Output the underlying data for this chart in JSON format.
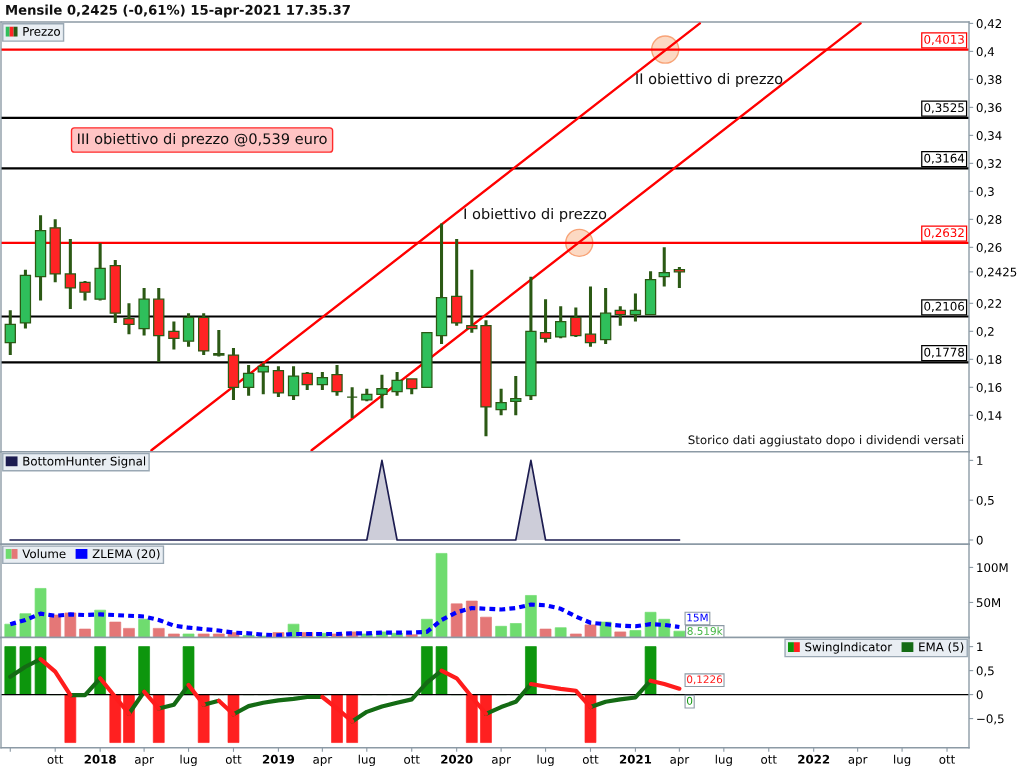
{
  "chart_data": [
    {
      "type": "candlestick",
      "title": "Mensile 0,2425 (-0,61%) 15-apr-2021 17.35.37",
      "x": [
        "2017-07",
        "2017-08",
        "2017-09",
        "2017-10",
        "2017-11",
        "2017-12",
        "2018-01",
        "2018-02",
        "2018-03",
        "2018-04",
        "2018-05",
        "2018-06",
        "2018-07",
        "2018-08",
        "2018-09",
        "2018-10",
        "2018-11",
        "2018-12",
        "2019-01",
        "2019-02",
        "2019-03",
        "2019-04",
        "2019-05",
        "2019-06",
        "2019-07",
        "2019-08",
        "2019-09",
        "2019-10",
        "2019-11",
        "2019-12",
        "2020-01",
        "2020-02",
        "2020-03",
        "2020-04",
        "2020-05",
        "2020-06",
        "2020-07",
        "2020-08",
        "2020-09",
        "2020-10",
        "2020-11",
        "2020-12",
        "2021-01",
        "2021-02",
        "2021-03",
        "2021-04"
      ],
      "series": [
        {
          "type": "candlestick",
          "name": "Prezzo",
          "color": "#2b5914",
          "ohlc": [
            [
              0.192,
              0.215,
              0.183,
              0.205
            ],
            [
              0.206,
              0.244,
              0.202,
              0.24
            ],
            [
              0.239,
              0.283,
              0.222,
              0.272
            ],
            [
              0.274,
              0.28,
              0.235,
              0.241
            ],
            [
              0.241,
              0.266,
              0.216,
              0.231
            ],
            [
              0.235,
              0.236,
              0.222,
              0.228
            ],
            [
              0.223,
              0.263,
              0.222,
              0.245
            ],
            [
              0.247,
              0.251,
              0.206,
              0.213
            ],
            [
              0.209,
              0.22,
              0.198,
              0.205
            ],
            [
              0.202,
              0.231,
              0.197,
              0.223
            ],
            [
              0.223,
              0.231,
              0.178,
              0.197
            ],
            [
              0.2,
              0.207,
              0.187,
              0.195
            ],
            [
              0.193,
              0.213,
              0.189,
              0.21
            ],
            [
              0.21,
              0.213,
              0.183,
              0.186
            ],
            [
              0.183,
              0.201,
              0.182,
              0.184
            ],
            [
              0.183,
              0.188,
              0.151,
              0.16
            ],
            [
              0.16,
              0.176,
              0.154,
              0.17
            ],
            [
              0.171,
              0.177,
              0.155,
              0.175
            ],
            [
              0.172,
              0.175,
              0.153,
              0.156
            ],
            [
              0.154,
              0.175,
              0.151,
              0.168
            ],
            [
              0.17,
              0.171,
              0.158,
              0.162
            ],
            [
              0.162,
              0.171,
              0.158,
              0.167
            ],
            [
              0.169,
              0.176,
              0.154,
              0.157
            ],
            [
              0.153,
              0.16,
              0.138,
              0.153
            ],
            [
              0.151,
              0.159,
              0.15,
              0.155
            ],
            [
              0.155,
              0.169,
              0.145,
              0.159
            ],
            [
              0.157,
              0.171,
              0.154,
              0.165
            ],
            [
              0.166,
              0.166,
              0.155,
              0.159
            ],
            [
              0.16,
              0.199,
              0.16,
              0.199
            ],
            [
              0.197,
              0.277,
              0.191,
              0.224
            ],
            [
              0.225,
              0.266,
              0.204,
              0.206
            ],
            [
              0.204,
              0.244,
              0.199,
              0.202
            ],
            [
              0.204,
              0.208,
              0.125,
              0.146
            ],
            [
              0.144,
              0.159,
              0.14,
              0.149
            ],
            [
              0.15,
              0.168,
              0.14,
              0.152
            ],
            [
              0.154,
              0.239,
              0.151,
              0.2
            ],
            [
              0.199,
              0.223,
              0.192,
              0.195
            ],
            [
              0.196,
              0.218,
              0.195,
              0.207
            ],
            [
              0.21,
              0.217,
              0.196,
              0.197
            ],
            [
              0.198,
              0.232,
              0.189,
              0.192
            ],
            [
              0.194,
              0.231,
              0.191,
              0.213
            ],
            [
              0.215,
              0.218,
              0.204,
              0.212
            ],
            [
              0.212,
              0.227,
              0.207,
              0.215
            ],
            [
              0.212,
              0.243,
              0.212,
              0.237
            ],
            [
              0.239,
              0.26,
              0.232,
              0.242
            ],
            [
              0.244,
              0.246,
              0.231,
              0.2425
            ]
          ],
          "colors": [
            "#2fbf5b",
            "#2fbf5b",
            "#2fbf5b",
            "#ff2424",
            "#ff2424",
            "#ff2424",
            "#2fbf5b",
            "#ff2424",
            "#ff2424",
            "#2fbf5b",
            "#ff2424",
            "#ff2424",
            "#2fbf5b",
            "#ff2424",
            "#2b5914",
            "#ff2424",
            "#2fbf5b",
            "#2fbf5b",
            "#ff2424",
            "#2fbf5b",
            "#ff2424",
            "#2fbf5b",
            "#ff2424",
            "#2b5914",
            "#2fbf5b",
            "#2fbf5b",
            "#2fbf5b",
            "#ff2424",
            "#2fbf5b",
            "#2fbf5b",
            "#ff2424",
            "#ff2424",
            "#ff2424",
            "#2fbf5b",
            "#2fbf5b",
            "#2fbf5b",
            "#ff2424",
            "#2fbf5b",
            "#ff2424",
            "#ff2424",
            "#2fbf5b",
            "#ff2424",
            "#2fbf5b",
            "#2fbf5b",
            "#2fbf5b",
            "#ff2424"
          ]
        },
        {
          "type": "line",
          "color": "#ff0000",
          "x": [
            "2018-04-16",
            "2021-05-13"
          ],
          "values": [
            0.115,
            0.42
          ]
        },
        {
          "type": "line",
          "color": "#ff0000",
          "x": [
            "2019-03-10",
            "2022-04-07"
          ],
          "values": [
            0.115,
            0.42
          ]
        },
        {
          "type": "scatter",
          "color": "#fcd2b8",
          "marker": "circle",
          "x": [
            "2020-09-08",
            "2021-03-03"
          ],
          "values": [
            0.2632,
            0.4013
          ]
        }
      ],
      "ref_lines": [
        {
          "axis": "y",
          "value": 0.4013,
          "label": "0,4013",
          "color": "#ff0000"
        },
        {
          "axis": "y",
          "value": 0.3525,
          "label": "0,3525",
          "color": "#000000"
        },
        {
          "axis": "y",
          "value": 0.3164,
          "label": "0,3164",
          "color": "#000000"
        },
        {
          "axis": "y",
          "value": 0.2632,
          "label": "0,2632",
          "color": "#ff0000"
        },
        {
          "axis": "y",
          "value": 0.2106,
          "label": "0,2106",
          "color": "#000000"
        },
        {
          "axis": "y",
          "value": 0.1778,
          "label": "0,1778",
          "color": "#000000"
        }
      ],
      "annotations": [
        "III obiettivo di prezzo @0,539 euro",
        "II obiettivo di prezzo",
        "I obiettivo di prezzo",
        "Storico dati aggiustato dopo i dividendi versati"
      ],
      "xlim": [
        "2017-06-12",
        "2022-11-15"
      ],
      "ylim": [
        0.114,
        0.421
      ],
      "yticks": [
        {
          "value": 0.14,
          "label": "0,14"
        },
        {
          "value": 0.16,
          "label": "0,16"
        },
        {
          "value": 0.18,
          "label": "0,18"
        },
        {
          "value": 0.2,
          "label": "0,2"
        },
        {
          "value": 0.22,
          "label": "0,22"
        },
        {
          "value": 0.2425,
          "label": "0,2425"
        },
        {
          "value": 0.26,
          "label": "0,26"
        },
        {
          "value": 0.28,
          "label": "0,28"
        },
        {
          "value": 0.3,
          "label": "0,3"
        },
        {
          "value": 0.32,
          "label": "0,32"
        },
        {
          "value": 0.34,
          "label": "0,34"
        },
        {
          "value": 0.36,
          "label": "0,36"
        },
        {
          "value": 0.38,
          "label": "0,38"
        },
        {
          "value": 0.4,
          "label": "0,4"
        },
        {
          "value": 0.42,
          "label": "0,42"
        }
      ],
      "tick_labels": "y",
      "legend": "top left"
    },
    {
      "type": "area",
      "x": [
        "2017-07",
        "2017-08",
        "2017-09",
        "2017-10",
        "2017-11",
        "2017-12",
        "2018-01",
        "2018-02",
        "2018-03",
        "2018-04",
        "2018-05",
        "2018-06",
        "2018-07",
        "2018-08",
        "2018-09",
        "2018-10",
        "2018-11",
        "2018-12",
        "2019-01",
        "2019-02",
        "2019-03",
        "2019-04",
        "2019-05",
        "2019-06",
        "2019-07",
        "2019-08",
        "2019-09",
        "2019-10",
        "2019-11",
        "2019-12",
        "2020-01",
        "2020-02",
        "2020-03",
        "2020-04",
        "2020-05",
        "2020-06",
        "2020-07",
        "2020-08",
        "2020-09",
        "2020-10",
        "2020-11",
        "2020-12",
        "2021-01",
        "2021-02",
        "2021-03",
        "2021-04"
      ],
      "series": [
        {
          "name": "BottomHunter Signal",
          "color": "#1c1c50",
          "values": [
            0,
            0,
            0,
            0,
            0,
            0,
            0,
            0,
            0,
            0,
            0,
            0,
            0,
            0,
            0,
            0,
            0,
            0,
            0,
            0,
            0,
            0,
            0,
            0,
            0,
            1,
            0,
            0,
            0,
            0,
            0,
            0,
            0,
            0,
            0,
            1,
            0,
            0,
            0,
            0,
            0,
            0,
            0,
            0,
            0,
            0
          ]
        }
      ],
      "xlim": [
        "2017-06-12",
        "2022-11-15"
      ],
      "ylim": [
        -0.054,
        1.109
      ],
      "yticks": [
        0,
        {
          "value": 0.5,
          "label": "0,5"
        },
        1
      ],
      "tick_labels": "y",
      "legend": "top left"
    },
    {
      "type": "bar",
      "x": [
        "2017-07",
        "2017-08",
        "2017-09",
        "2017-10",
        "2017-11",
        "2017-12",
        "2018-01",
        "2018-02",
        "2018-03",
        "2018-04",
        "2018-05",
        "2018-06",
        "2018-07",
        "2018-08",
        "2018-09",
        "2018-10",
        "2018-11",
        "2018-12",
        "2019-01",
        "2019-02",
        "2019-03",
        "2019-04",
        "2019-05",
        "2019-06",
        "2019-07",
        "2019-08",
        "2019-09",
        "2019-10",
        "2019-11",
        "2019-12",
        "2020-01",
        "2020-02",
        "2020-03",
        "2020-04",
        "2020-05",
        "2020-06",
        "2020-07",
        "2020-08",
        "2020-09",
        "2020-10",
        "2020-11",
        "2020-12",
        "2021-01",
        "2021-02",
        "2021-03",
        "2021-04"
      ],
      "series": [
        {
          "name": "Volume",
          "values": [
            19000000,
            34000000,
            70000000,
            32000000,
            35000000,
            12000000,
            39000000,
            22000000,
            13000000,
            26000000,
            13000000,
            5000000,
            5000000,
            5000000,
            5000000,
            7000000,
            3000000,
            2000000,
            7000000,
            19000000,
            7000000,
            6000000,
            5000000,
            8000000,
            5000000,
            8000000,
            6000000,
            4000000,
            26000000,
            120000000,
            48000000,
            52000000,
            29000000,
            16000000,
            20000000,
            60000000,
            12000000,
            14000000,
            5000000,
            18000000,
            22000000,
            8000000,
            10000000,
            36000000,
            26000000,
            9000000
          ],
          "colors": [
            "#6fdc6f",
            "#6fdc6f",
            "#6fdc6f",
            "#e47777",
            "#e47777",
            "#e47777",
            "#6fdc6f",
            "#e47777",
            "#e47777",
            "#6fdc6f",
            "#e47777",
            "#e47777",
            "#6fdc6f",
            "#e47777",
            "#e47777",
            "#e47777",
            "#6fdc6f",
            "#6fdc6f",
            "#e47777",
            "#6fdc6f",
            "#e47777",
            "#6fdc6f",
            "#e47777",
            "#e47777",
            "#6fdc6f",
            "#6fdc6f",
            "#6fdc6f",
            "#e47777",
            "#6fdc6f",
            "#6fdc6f",
            "#e47777",
            "#e47777",
            "#e47777",
            "#6fdc6f",
            "#6fdc6f",
            "#6fdc6f",
            "#e47777",
            "#6fdc6f",
            "#e47777",
            "#e47777",
            "#6fdc6f",
            "#e47777",
            "#6fdc6f",
            "#6fdc6f",
            "#6fdc6f",
            "#6fdc6f"
          ]
        },
        {
          "name": "ZLEMA (20)",
          "type": "line",
          "color": "#0000ff",
          "line_style": "dashed",
          "values": [
            19000000,
            25000000,
            34000000,
            31000000,
            33000000,
            32000000,
            33000000,
            32000000,
            31000000,
            30000000,
            25000000,
            17000000,
            14000000,
            12000000,
            10000000,
            7000000,
            6000000,
            4000000,
            3000000,
            5000000,
            5000000,
            5000000,
            5000000,
            6000000,
            6000000,
            7000000,
            7000000,
            7000000,
            8000000,
            25000000,
            36000000,
            42000000,
            41000000,
            40000000,
            42000000,
            47000000,
            46000000,
            41000000,
            30000000,
            21000000,
            19000000,
            17000000,
            16000000,
            19000000,
            18000000,
            15000000
          ],
          "value_labels": [
            null,
            null,
            null,
            null,
            null,
            null,
            null,
            null,
            null,
            null,
            null,
            null,
            null,
            null,
            null,
            null,
            null,
            null,
            null,
            null,
            null,
            null,
            null,
            null,
            null,
            null,
            null,
            null,
            null,
            null,
            null,
            null,
            null,
            null,
            null,
            null,
            null,
            null,
            null,
            null,
            null,
            null,
            null,
            null,
            null,
            "15M"
          ]
        }
      ],
      "annotations": [
        "8.519k"
      ],
      "xlim": [
        "2017-06-12",
        "2022-11-15"
      ],
      "ylim": [
        0,
        133000000
      ],
      "yticks": [
        {
          "value": 50000000,
          "label": "50M"
        },
        {
          "value": 100000000,
          "label": "100M"
        }
      ],
      "tick_labels": "y",
      "legend": "top left"
    },
    {
      "type": "bar",
      "x": [
        "2017-07",
        "2017-08",
        "2017-09",
        "2017-10",
        "2017-11",
        "2017-12",
        "2018-01",
        "2018-02",
        "2018-03",
        "2018-04",
        "2018-05",
        "2018-06",
        "2018-07",
        "2018-08",
        "2018-09",
        "2018-10",
        "2018-11",
        "2018-12",
        "2019-01",
        "2019-02",
        "2019-03",
        "2019-04",
        "2019-05",
        "2019-06",
        "2019-07",
        "2019-08",
        "2019-09",
        "2019-10",
        "2019-11",
        "2019-12",
        "2020-01",
        "2020-02",
        "2020-03",
        "2020-04",
        "2020-05",
        "2020-06",
        "2020-07",
        "2020-08",
        "2020-09",
        "2020-10",
        "2020-11",
        "2020-12",
        "2021-01",
        "2021-02",
        "2021-03",
        "2021-04"
      ],
      "series": [
        {
          "name": "SwingIndicator",
          "values": [
            1,
            1,
            1,
            0,
            -1,
            0,
            1,
            -1,
            -1,
            1,
            -1,
            0,
            1,
            -1,
            0,
            -1,
            0,
            0,
            0,
            0,
            0,
            0,
            -1,
            -1,
            0,
            0,
            0,
            0,
            1,
            1,
            0,
            -1,
            -1,
            0,
            0,
            1,
            0,
            0,
            0,
            -1,
            0,
            0,
            0,
            1,
            0,
            0
          ],
          "colors": [
            "#0d960d",
            "#0d960d",
            "#0d960d",
            "#0d960d",
            "#ff2020",
            "#0d960d",
            "#0d960d",
            "#ff2020",
            "#ff2020",
            "#0d960d",
            "#ff2020",
            "#0d960d",
            "#0d960d",
            "#ff2020",
            "#0d960d",
            "#ff2020",
            "#0d960d",
            "#0d960d",
            "#0d960d",
            "#0d960d",
            "#0d960d",
            "#0d960d",
            "#ff2020",
            "#ff2020",
            "#0d960d",
            "#0d960d",
            "#0d960d",
            "#0d960d",
            "#0d960d",
            "#0d960d",
            "#0d960d",
            "#ff2020",
            "#ff2020",
            "#0d960d",
            "#0d960d",
            "#0d960d",
            "#0d960d",
            "#0d960d",
            "#0d960d",
            "#ff2020",
            "#0d960d",
            "#0d960d",
            "#0d960d",
            "#0d960d",
            "#0d960d",
            "#0d960d"
          ],
          "value_labels": [
            null,
            null,
            null,
            null,
            null,
            null,
            null,
            null,
            null,
            null,
            null,
            null,
            null,
            null,
            null,
            null,
            null,
            null,
            null,
            null,
            null,
            null,
            null,
            null,
            null,
            null,
            null,
            null,
            null,
            null,
            null,
            null,
            null,
            null,
            null,
            null,
            null,
            null,
            null,
            null,
            null,
            null,
            null,
            null,
            null,
            "0"
          ]
        },
        {
          "name": "EMA (5)",
          "type": "line",
          "color": "#146b14",
          "values": [
            0.37,
            0.58,
            0.74,
            null,
            -0.01,
            -0.01,
            0.34,
            null,
            -0.4,
            0.06,
            null,
            null,
            null,
            -0.21,
            -0.13,
            null,
            null,
            null,
            null,
            null,
            null,
            null,
            null,
            -0.56,
            -0.36,
            -0.25,
            -0.17,
            -0.1,
            0.25,
            0.5,
            null,
            null,
            null,
            null,
            null,
            null,
            null,
            null,
            null,
            -0.26,
            -0.15,
            -0.1,
            -0.06,
            0.29,
            null,
            null
          ]
        },
        {
          "type": "line",
          "color": "#146b14",
          "values": [
            null,
            null,
            null,
            null,
            null,
            null,
            null,
            null,
            null,
            null,
            -0.29,
            -0.21,
            0.2,
            null,
            null,
            -0.41,
            -0.24,
            -0.17,
            -0.12,
            -0.09,
            -0.05,
            -0.05,
            null,
            null,
            null,
            null,
            null,
            null,
            null,
            null,
            null,
            null,
            -0.4,
            -0.26,
            -0.15,
            0.22,
            null,
            null,
            null,
            null,
            null,
            null,
            null,
            null,
            null,
            null
          ]
        },
        {
          "type": "line",
          "color": "#ff1c1c",
          "values": [
            null,
            null,
            0.74,
            0.48,
            -0.01,
            null,
            0.34,
            -0.05,
            -0.4,
            null,
            null,
            null,
            0.2,
            -0.21,
            null,
            null,
            null,
            null,
            null,
            null,
            null,
            -0.05,
            -0.29,
            -0.56,
            null,
            null,
            null,
            null,
            null,
            0.5,
            0.34,
            -0.05,
            -0.4,
            null,
            null,
            0.22,
            0.17,
            0.12,
            0.08,
            -0.26,
            null,
            null,
            null,
            0.29,
            0.22,
            0.1226
          ],
          "value_labels": [
            null,
            null,
            null,
            null,
            null,
            null,
            null,
            null,
            null,
            null,
            null,
            null,
            null,
            null,
            null,
            null,
            null,
            null,
            null,
            null,
            null,
            null,
            null,
            null,
            null,
            null,
            null,
            null,
            null,
            null,
            null,
            null,
            null,
            null,
            null,
            null,
            null,
            null,
            null,
            null,
            null,
            null,
            null,
            null,
            null,
            "0,1226"
          ]
        },
        {
          "type": "line",
          "color": "#ff1c1c",
          "values": [
            null,
            null,
            null,
            null,
            null,
            null,
            null,
            null,
            null,
            0.06,
            -0.29,
            null,
            null,
            null,
            -0.13,
            -0.41,
            null,
            null,
            null,
            null,
            null,
            null,
            null,
            null,
            null,
            null,
            null,
            null,
            null,
            null,
            null,
            null,
            null,
            null,
            null,
            null,
            null,
            null,
            null,
            null,
            null,
            null,
            null,
            null,
            null,
            null
          ]
        }
      ],
      "ref_lines": [
        {
          "axis": "y",
          "value": 0,
          "color": "#000000"
        }
      ],
      "xlim": [
        "2017-06-12",
        "2022-11-15"
      ],
      "ylim": [
        -1.107,
        1.19
      ],
      "xticks": [
        {
          "value": "2017-07",
          "label": null
        },
        {
          "value": "2017-10",
          "label": "ott"
        },
        {
          "value": "2018-01",
          "label": "2018"
        },
        {
          "value": "2018-04",
          "label": "apr"
        },
        {
          "value": "2018-07",
          "label": "lug"
        },
        {
          "value": "2018-10",
          "label": "ott"
        },
        {
          "value": "2019-01",
          "label": "2019"
        },
        {
          "value": "2019-04",
          "label": "apr"
        },
        {
          "value": "2019-07",
          "label": "lug"
        },
        {
          "value": "2019-10",
          "label": "ott"
        },
        {
          "value": "2020-01",
          "label": "2020"
        },
        {
          "value": "2020-04",
          "label": "apr"
        },
        {
          "value": "2020-07",
          "label": "lug"
        },
        {
          "value": "2020-10",
          "label": "ott"
        },
        {
          "value": "2021-01",
          "label": "2021"
        },
        {
          "value": "2021-04",
          "label": "apr"
        },
        {
          "value": "2021-07",
          "label": "lug"
        },
        {
          "value": "2021-10",
          "label": "ott"
        },
        {
          "value": "2022-01",
          "label": "2022"
        },
        {
          "value": "2022-04",
          "label": "apr"
        },
        {
          "value": "2022-07",
          "label": "lug"
        },
        {
          "value": "2022-10",
          "label": "ott"
        }
      ],
      "yticks": [
        {
          "value": -0.5,
          "label": "−0,5"
        },
        0,
        {
          "value": 0.5,
          "label": "0,5"
        },
        1
      ],
      "legend": "top right"
    }
  ]
}
